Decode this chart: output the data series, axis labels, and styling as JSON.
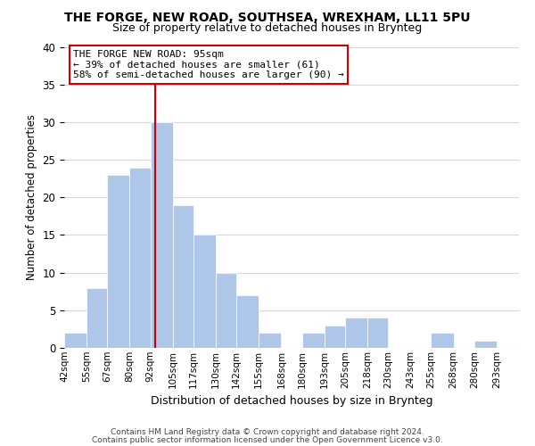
{
  "title": "THE FORGE, NEW ROAD, SOUTHSEA, WREXHAM, LL11 5PU",
  "subtitle": "Size of property relative to detached houses in Brynteg",
  "xlabel": "Distribution of detached houses by size in Brynteg",
  "ylabel": "Number of detached properties",
  "bar_color": "#aec6e8",
  "bar_edge_color": "white",
  "bin_labels": [
    "42sqm",
    "55sqm",
    "67sqm",
    "80sqm",
    "92sqm",
    "105sqm",
    "117sqm",
    "130sqm",
    "142sqm",
    "155sqm",
    "168sqm",
    "180sqm",
    "193sqm",
    "205sqm",
    "218sqm",
    "230sqm",
    "243sqm",
    "255sqm",
    "268sqm",
    "280sqm",
    "293sqm"
  ],
  "bin_edges": [
    42,
    55,
    67,
    80,
    92,
    105,
    117,
    130,
    142,
    155,
    168,
    180,
    193,
    205,
    218,
    230,
    243,
    255,
    268,
    280,
    293
  ],
  "counts": [
    2,
    8,
    23,
    24,
    30,
    19,
    15,
    10,
    7,
    2,
    0,
    2,
    3,
    4,
    4,
    0,
    0,
    2,
    0,
    1,
    0
  ],
  "vline_x": 95,
  "vline_color": "#cc0000",
  "ylim": [
    0,
    40
  ],
  "yticks": [
    0,
    5,
    10,
    15,
    20,
    25,
    30,
    35,
    40
  ],
  "annotation_title": "THE FORGE NEW ROAD: 95sqm",
  "annotation_line1": "← 39% of detached houses are smaller (61)",
  "annotation_line2": "58% of semi-detached houses are larger (90) →",
  "footer1": "Contains HM Land Registry data © Crown copyright and database right 2024.",
  "footer2": "Contains public sector information licensed under the Open Government Licence v3.0.",
  "background_color": "#ffffff",
  "grid_color": "#d0d8e8"
}
